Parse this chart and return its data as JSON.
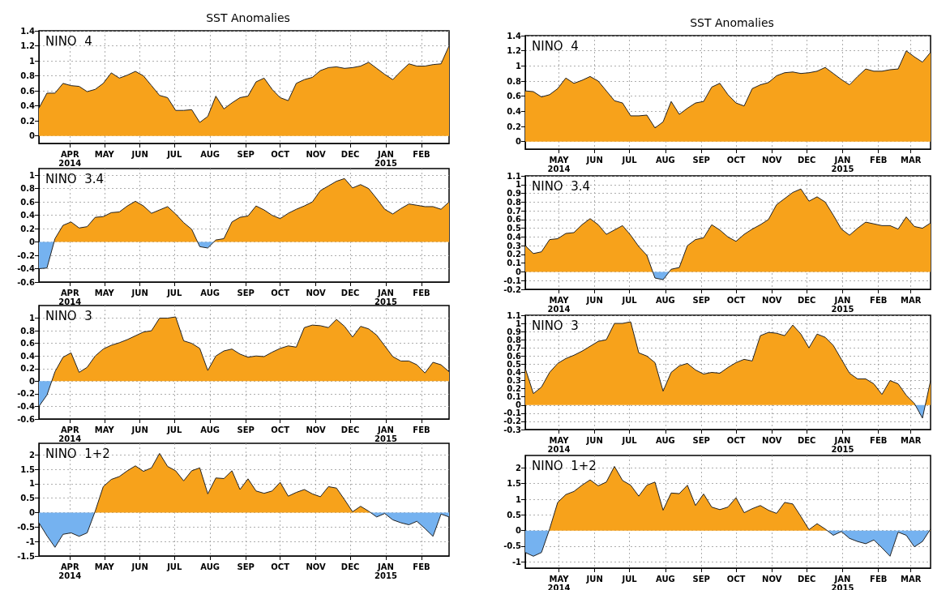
{
  "chart_data": [
    {
      "type": "area",
      "title": "SST Anomalies",
      "annotations": [
        "NINO  4"
      ],
      "grid": true,
      "marker": "none",
      "colors": [
        "#f7a21b",
        "#f7a21b",
        "#f7a21b",
        "#f7a21b",
        "#f7a21b",
        "#f7a21b",
        "#f7a21b",
        "#f7a21b",
        "#f7a21b",
        "#f7a21b",
        "#f7a21b",
        "#f7a21b",
        "#f7a21b",
        "#f7a21b",
        "#f7a21b",
        "#f7a21b",
        "#f7a21b",
        "#f7a21b",
        "#f7a21b",
        "#f7a21b",
        "#f7a21b",
        "#f7a21b",
        "#f7a21b",
        "#f7a21b",
        "#f7a21b",
        "#f7a21b",
        "#f7a21b",
        "#f7a21b",
        "#f7a21b",
        "#f7a21b",
        "#f7a21b",
        "#f7a21b",
        "#f7a21b",
        "#f7a21b",
        "#f7a21b",
        "#f7a21b",
        "#f7a21b",
        "#f7a21b",
        "#f7a21b",
        "#f7a21b",
        "#f7a21b",
        "#f7a21b",
        "#f7a21b",
        "#f7a21b",
        "#f7a21b",
        "#f7a21b",
        "#f7a21b",
        "#f7a21b",
        "#f7a21b",
        "#f7a21b",
        "#f7a21b",
        "#f7a21b"
      ],
      "xlim": [
        "2014-03-05",
        "2015-02-25"
      ],
      "ylim": [
        -0.1,
        1.4
      ],
      "yticks": [
        0,
        0.2,
        0.4,
        0.6,
        0.8,
        1,
        1.2,
        1.4
      ],
      "xticks": [
        {
          "value": "2014-04-01",
          "label": "APR\n2014"
        },
        {
          "value": "2014-05-01",
          "label": "MAY"
        },
        {
          "value": "2014-06-01",
          "label": "JUN"
        },
        {
          "value": "2014-07-01",
          "label": "JUL"
        },
        {
          "value": "2014-08-01",
          "label": "AUG"
        },
        {
          "value": "2014-09-01",
          "label": "SEP"
        },
        {
          "value": "2014-10-01",
          "label": "OCT"
        },
        {
          "value": "2014-11-01",
          "label": "NOV"
        },
        {
          "value": "2014-12-01",
          "label": "DEC"
        },
        {
          "value": "2015-01-01",
          "label": "JAN\n2015"
        },
        {
          "value": "2015-02-01",
          "label": "FEB"
        }
      ],
      "x": [
        "2014-03-05",
        "2014-03-12",
        "2014-03-19",
        "2014-03-26",
        "2014-04-02",
        "2014-04-09",
        "2014-04-16",
        "2014-04-23",
        "2014-04-30",
        "2014-05-07",
        "2014-05-14",
        "2014-05-21",
        "2014-05-28",
        "2014-06-04",
        "2014-06-11",
        "2014-06-18",
        "2014-06-25",
        "2014-07-02",
        "2014-07-09",
        "2014-07-16",
        "2014-07-23",
        "2014-07-30",
        "2014-08-06",
        "2014-08-13",
        "2014-08-20",
        "2014-08-27",
        "2014-09-03",
        "2014-09-10",
        "2014-09-17",
        "2014-09-24",
        "2014-10-01",
        "2014-10-08",
        "2014-10-15",
        "2014-10-22",
        "2014-10-29",
        "2014-11-05",
        "2014-11-12",
        "2014-11-19",
        "2014-11-26",
        "2014-12-03",
        "2014-12-10",
        "2014-12-17",
        "2014-12-24",
        "2014-12-31",
        "2015-01-07",
        "2015-01-14",
        "2015-01-21",
        "2015-01-28",
        "2015-02-04",
        "2015-02-11",
        "2015-02-18",
        "2015-02-25"
      ],
      "values": [
        0.37,
        0.57,
        0.57,
        0.7,
        0.67,
        0.66,
        0.59,
        0.62,
        0.7,
        0.84,
        0.77,
        0.81,
        0.86,
        0.8,
        0.67,
        0.54,
        0.51,
        0.34,
        0.34,
        0.35,
        0.18,
        0.26,
        0.53,
        0.36,
        0.44,
        0.51,
        0.53,
        0.72,
        0.77,
        0.62,
        0.51,
        0.47,
        0.7,
        0.75,
        0.78,
        0.87,
        0.91,
        0.92,
        0.9,
        0.91,
        0.93,
        0.98,
        0.9,
        0.82,
        0.75,
        0.86,
        0.96,
        0.93,
        0.93,
        0.95,
        0.96,
        1.2
      ]
    },
    {
      "type": "area",
      "annotations": [
        "NINO  3.4"
      ],
      "grid": true,
      "marker": "none",
      "colors": [
        "#75b2f0",
        "#75b2f0",
        "#f7a21b",
        "#f7a21b",
        "#f7a21b",
        "#f7a21b",
        "#f7a21b",
        "#f7a21b",
        "#f7a21b",
        "#f7a21b",
        "#f7a21b",
        "#f7a21b",
        "#f7a21b",
        "#f7a21b",
        "#f7a21b",
        "#f7a21b",
        "#f7a21b",
        "#f7a21b",
        "#f7a21b",
        "#f7a21b",
        "#75b2f0",
        "#75b2f0",
        "#f7a21b",
        "#f7a21b",
        "#f7a21b",
        "#f7a21b",
        "#f7a21b",
        "#f7a21b",
        "#f7a21b",
        "#f7a21b",
        "#f7a21b",
        "#f7a21b",
        "#f7a21b",
        "#f7a21b",
        "#f7a21b",
        "#f7a21b",
        "#f7a21b",
        "#f7a21b",
        "#f7a21b",
        "#f7a21b",
        "#f7a21b",
        "#f7a21b",
        "#f7a21b",
        "#f7a21b",
        "#f7a21b",
        "#f7a21b",
        "#f7a21b",
        "#f7a21b",
        "#f7a21b",
        "#f7a21b",
        "#f7a21b",
        "#f7a21b"
      ],
      "xlim": [
        "2014-03-05",
        "2015-02-25"
      ],
      "ylim": [
        -0.6,
        1.1
      ],
      "yticks": [
        -0.6,
        -0.4,
        -0.2,
        0,
        0.2,
        0.4,
        0.6,
        0.8,
        1
      ],
      "xticks": [
        {
          "value": "2014-04-01",
          "label": "APR\n2014"
        },
        {
          "value": "2014-05-01",
          "label": "MAY"
        },
        {
          "value": "2014-06-01",
          "label": "JUN"
        },
        {
          "value": "2014-07-01",
          "label": "JUL"
        },
        {
          "value": "2014-08-01",
          "label": "AUG"
        },
        {
          "value": "2014-09-01",
          "label": "SEP"
        },
        {
          "value": "2014-10-01",
          "label": "OCT"
        },
        {
          "value": "2014-11-01",
          "label": "NOV"
        },
        {
          "value": "2014-12-01",
          "label": "DEC"
        },
        {
          "value": "2015-01-01",
          "label": "JAN\n2015"
        },
        {
          "value": "2015-02-01",
          "label": "FEB"
        }
      ],
      "x": [
        "2014-03-05",
        "2014-03-12",
        "2014-03-19",
        "2014-03-26",
        "2014-04-02",
        "2014-04-09",
        "2014-04-16",
        "2014-04-23",
        "2014-04-30",
        "2014-05-07",
        "2014-05-14",
        "2014-05-21",
        "2014-05-28",
        "2014-06-04",
        "2014-06-11",
        "2014-06-18",
        "2014-06-25",
        "2014-07-02",
        "2014-07-09",
        "2014-07-16",
        "2014-07-23",
        "2014-07-30",
        "2014-08-06",
        "2014-08-13",
        "2014-08-20",
        "2014-08-27",
        "2014-09-03",
        "2014-09-10",
        "2014-09-17",
        "2014-09-24",
        "2014-10-01",
        "2014-10-08",
        "2014-10-15",
        "2014-10-22",
        "2014-10-29",
        "2014-11-05",
        "2014-11-12",
        "2014-11-19",
        "2014-11-26",
        "2014-12-03",
        "2014-12-10",
        "2014-12-17",
        "2014-12-24",
        "2014-12-31",
        "2015-01-07",
        "2015-01-14",
        "2015-01-21",
        "2015-01-28",
        "2015-02-04",
        "2015-02-11",
        "2015-02-18",
        "2015-02-25"
      ],
      "values": [
        -0.4,
        -0.39,
        0.05,
        0.25,
        0.3,
        0.21,
        0.23,
        0.37,
        0.38,
        0.44,
        0.45,
        0.54,
        0.61,
        0.54,
        0.43,
        0.48,
        0.53,
        0.42,
        0.29,
        0.19,
        -0.07,
        -0.09,
        0.03,
        0.05,
        0.3,
        0.37,
        0.39,
        0.54,
        0.48,
        0.4,
        0.35,
        0.43,
        0.49,
        0.54,
        0.6,
        0.77,
        0.84,
        0.91,
        0.95,
        0.81,
        0.86,
        0.8,
        0.65,
        0.49,
        0.42,
        0.5,
        0.57,
        0.55,
        0.53,
        0.53,
        0.49,
        0.6
      ]
    },
    {
      "type": "area",
      "annotations": [
        "NINO  3"
      ],
      "grid": true,
      "marker": "none",
      "colors": [
        "#75b2f0",
        "#75b2f0",
        "#f7a21b",
        "#f7a21b",
        "#f7a21b",
        "#f7a21b",
        "#f7a21b",
        "#f7a21b",
        "#f7a21b",
        "#f7a21b",
        "#f7a21b",
        "#f7a21b",
        "#f7a21b",
        "#f7a21b",
        "#f7a21b",
        "#f7a21b",
        "#f7a21b",
        "#f7a21b",
        "#f7a21b",
        "#f7a21b",
        "#f7a21b",
        "#f7a21b",
        "#f7a21b",
        "#f7a21b",
        "#f7a21b",
        "#f7a21b",
        "#f7a21b",
        "#f7a21b",
        "#f7a21b",
        "#f7a21b",
        "#f7a21b",
        "#f7a21b",
        "#f7a21b",
        "#f7a21b",
        "#f7a21b",
        "#f7a21b",
        "#f7a21b",
        "#f7a21b",
        "#f7a21b",
        "#f7a21b",
        "#f7a21b",
        "#f7a21b",
        "#f7a21b",
        "#f7a21b",
        "#f7a21b",
        "#f7a21b",
        "#f7a21b",
        "#f7a21b",
        "#f7a21b",
        "#f7a21b",
        "#f7a21b",
        "#f7a21b"
      ],
      "xlim": [
        "2014-03-05",
        "2015-02-25"
      ],
      "ylim": [
        -0.6,
        1.2
      ],
      "yticks": [
        -0.6,
        -0.4,
        -0.2,
        0,
        0.2,
        0.4,
        0.6,
        0.8,
        1
      ],
      "xticks": [
        {
          "value": "2014-04-01",
          "label": "APR\n2014"
        },
        {
          "value": "2014-05-01",
          "label": "MAY"
        },
        {
          "value": "2014-06-01",
          "label": "JUN"
        },
        {
          "value": "2014-07-01",
          "label": "JUL"
        },
        {
          "value": "2014-08-01",
          "label": "AUG"
        },
        {
          "value": "2014-09-01",
          "label": "SEP"
        },
        {
          "value": "2014-10-01",
          "label": "OCT"
        },
        {
          "value": "2014-11-01",
          "label": "NOV"
        },
        {
          "value": "2014-12-01",
          "label": "DEC"
        },
        {
          "value": "2015-01-01",
          "label": "JAN\n2015"
        },
        {
          "value": "2015-02-01",
          "label": "FEB"
        }
      ],
      "x": [
        "2014-03-05",
        "2014-03-12",
        "2014-03-19",
        "2014-03-26",
        "2014-04-02",
        "2014-04-09",
        "2014-04-16",
        "2014-04-23",
        "2014-04-30",
        "2014-05-07",
        "2014-05-14",
        "2014-05-21",
        "2014-05-28",
        "2014-06-04",
        "2014-06-11",
        "2014-06-18",
        "2014-06-25",
        "2014-07-02",
        "2014-07-09",
        "2014-07-16",
        "2014-07-23",
        "2014-07-30",
        "2014-08-06",
        "2014-08-13",
        "2014-08-20",
        "2014-08-27",
        "2014-09-03",
        "2014-09-10",
        "2014-09-17",
        "2014-09-24",
        "2014-10-01",
        "2014-10-08",
        "2014-10-15",
        "2014-10-22",
        "2014-10-29",
        "2014-11-05",
        "2014-11-12",
        "2014-11-19",
        "2014-11-26",
        "2014-12-03",
        "2014-12-10",
        "2014-12-17",
        "2014-12-24",
        "2014-12-31",
        "2015-01-07",
        "2015-01-14",
        "2015-01-21",
        "2015-01-28",
        "2015-02-04",
        "2015-02-11",
        "2015-02-18",
        "2015-02-25"
      ],
      "values": [
        -0.4,
        -0.22,
        0.15,
        0.38,
        0.45,
        0.14,
        0.22,
        0.4,
        0.51,
        0.57,
        0.61,
        0.66,
        0.72,
        0.78,
        0.8,
        1,
        1,
        1.02,
        0.64,
        0.6,
        0.52,
        0.17,
        0.4,
        0.48,
        0.51,
        0.43,
        0.38,
        0.4,
        0.39,
        0.46,
        0.52,
        0.56,
        0.54,
        0.85,
        0.89,
        0.88,
        0.85,
        0.98,
        0.87,
        0.7,
        0.87,
        0.83,
        0.73,
        0.56,
        0.39,
        0.32,
        0.32,
        0.26,
        0.13,
        0.3,
        0.26,
        0.15
      ]
    },
    {
      "type": "area",
      "annotations": [
        "NINO  1+2"
      ],
      "grid": true,
      "marker": "none",
      "colors": [
        "#75b2f0",
        "#75b2f0",
        "#75b2f0",
        "#75b2f0",
        "#75b2f0",
        "#75b2f0",
        "#75b2f0",
        "#f7a21b",
        "#f7a21b",
        "#f7a21b",
        "#f7a21b",
        "#f7a21b",
        "#f7a21b",
        "#f7a21b",
        "#f7a21b",
        "#f7a21b",
        "#f7a21b",
        "#f7a21b",
        "#f7a21b",
        "#f7a21b",
        "#f7a21b",
        "#f7a21b",
        "#f7a21b",
        "#f7a21b",
        "#f7a21b",
        "#f7a21b",
        "#f7a21b",
        "#f7a21b",
        "#f7a21b",
        "#f7a21b",
        "#f7a21b",
        "#f7a21b",
        "#f7a21b",
        "#f7a21b",
        "#f7a21b",
        "#f7a21b",
        "#f7a21b",
        "#f7a21b",
        "#f7a21b",
        "#f7a21b",
        "#f7a21b",
        "#f7a21b",
        "#75b2f0",
        "#75b2f0",
        "#75b2f0",
        "#75b2f0",
        "#75b2f0",
        "#75b2f0",
        "#75b2f0",
        "#75b2f0",
        "#75b2f0",
        "#75b2f0"
      ],
      "xlim": [
        "2014-03-05",
        "2015-02-25"
      ],
      "ylim": [
        -1.5,
        2.4
      ],
      "yticks": [
        -1.5,
        -1,
        -0.5,
        0,
        0.5,
        1,
        1.5,
        2
      ],
      "xticks": [
        {
          "value": "2014-04-01",
          "label": "APR\n2014"
        },
        {
          "value": "2014-05-01",
          "label": "MAY"
        },
        {
          "value": "2014-06-01",
          "label": "JUN"
        },
        {
          "value": "2014-07-01",
          "label": "JUL"
        },
        {
          "value": "2014-08-01",
          "label": "AUG"
        },
        {
          "value": "2014-09-01",
          "label": "SEP"
        },
        {
          "value": "2014-10-01",
          "label": "OCT"
        },
        {
          "value": "2014-11-01",
          "label": "NOV"
        },
        {
          "value": "2014-12-01",
          "label": "DEC"
        },
        {
          "value": "2015-01-01",
          "label": "JAN\n2015"
        },
        {
          "value": "2015-02-01",
          "label": "FEB"
        }
      ],
      "x": [
        "2014-03-05",
        "2014-03-12",
        "2014-03-19",
        "2014-03-26",
        "2014-04-02",
        "2014-04-09",
        "2014-04-16",
        "2014-04-23",
        "2014-04-30",
        "2014-05-07",
        "2014-05-14",
        "2014-05-21",
        "2014-05-28",
        "2014-06-04",
        "2014-06-11",
        "2014-06-18",
        "2014-06-25",
        "2014-07-02",
        "2014-07-09",
        "2014-07-16",
        "2014-07-23",
        "2014-07-30",
        "2014-08-06",
        "2014-08-13",
        "2014-08-20",
        "2014-08-27",
        "2014-09-03",
        "2014-09-10",
        "2014-09-17",
        "2014-09-24",
        "2014-10-01",
        "2014-10-08",
        "2014-10-15",
        "2014-10-22",
        "2014-10-29",
        "2014-11-05",
        "2014-11-12",
        "2014-11-19",
        "2014-11-26",
        "2014-12-03",
        "2014-12-10",
        "2014-12-17",
        "2014-12-24",
        "2014-12-31",
        "2015-01-07",
        "2015-01-14",
        "2015-01-21",
        "2015-01-28",
        "2015-02-04",
        "2015-02-11",
        "2015-02-18",
        "2015-02-25"
      ],
      "values": [
        -0.35,
        -0.8,
        -1.2,
        -0.75,
        -0.7,
        -0.82,
        -0.7,
        0.05,
        0.9,
        1.15,
        1.25,
        1.45,
        1.62,
        1.43,
        1.55,
        2.05,
        1.6,
        1.45,
        1.1,
        1.45,
        1.55,
        0.65,
        1.2,
        1.18,
        1.45,
        0.8,
        1.17,
        0.75,
        0.67,
        0.75,
        1.05,
        0.57,
        0.7,
        0.8,
        0.65,
        0.55,
        0.9,
        0.85,
        0.45,
        0.03,
        0.22,
        0.05,
        -0.15,
        -0.03,
        -0.25,
        -0.35,
        -0.42,
        -0.3,
        -0.55,
        -0.82,
        -0.05,
        -0.15
      ]
    },
    {
      "type": "area",
      "title": "SST Anomalies",
      "annotations": [
        "NINO  4"
      ],
      "grid": true,
      "marker": "none",
      "colors": [
        "#f7a21b",
        "#f7a21b",
        "#f7a21b",
        "#f7a21b",
        "#f7a21b",
        "#f7a21b",
        "#f7a21b",
        "#f7a21b",
        "#f7a21b",
        "#f7a21b",
        "#f7a21b",
        "#f7a21b",
        "#f7a21b",
        "#f7a21b",
        "#f7a21b",
        "#f7a21b",
        "#f7a21b",
        "#f7a21b",
        "#f7a21b",
        "#f7a21b",
        "#f7a21b",
        "#f7a21b",
        "#f7a21b",
        "#f7a21b",
        "#f7a21b",
        "#f7a21b",
        "#f7a21b",
        "#f7a21b",
        "#f7a21b",
        "#f7a21b",
        "#f7a21b",
        "#f7a21b",
        "#f7a21b",
        "#f7a21b",
        "#f7a21b",
        "#f7a21b",
        "#f7a21b",
        "#f7a21b",
        "#f7a21b",
        "#f7a21b",
        "#f7a21b",
        "#f7a21b",
        "#f7a21b",
        "#f7a21b",
        "#f7a21b",
        "#f7a21b",
        "#f7a21b",
        "#f7a21b",
        "#f7a21b",
        "#f7a21b",
        "#f7a21b"
      ],
      "xlim": [
        "2014-04-02",
        "2015-03-18"
      ],
      "ylim": [
        -0.1,
        1.4
      ],
      "yticks": [
        0,
        0.2,
        0.4,
        0.6,
        0.8,
        1,
        1.2,
        1.4
      ],
      "xticks": [
        {
          "value": "2014-05-01",
          "label": "MAY\n2014"
        },
        {
          "value": "2014-06-01",
          "label": "JUN"
        },
        {
          "value": "2014-07-01",
          "label": "JUL"
        },
        {
          "value": "2014-08-01",
          "label": "AUG"
        },
        {
          "value": "2014-09-01",
          "label": "SEP"
        },
        {
          "value": "2014-10-01",
          "label": "OCT"
        },
        {
          "value": "2014-11-01",
          "label": "NOV"
        },
        {
          "value": "2014-12-01",
          "label": "DEC"
        },
        {
          "value": "2015-01-01",
          "label": "JAN\n2015"
        },
        {
          "value": "2015-02-01",
          "label": "FEB"
        },
        {
          "value": "2015-03-01",
          "label": "MAR"
        }
      ],
      "x": [
        "2014-04-02",
        "2014-04-09",
        "2014-04-16",
        "2014-04-23",
        "2014-04-30",
        "2014-05-07",
        "2014-05-14",
        "2014-05-21",
        "2014-05-28",
        "2014-06-04",
        "2014-06-11",
        "2014-06-18",
        "2014-06-25",
        "2014-07-02",
        "2014-07-09",
        "2014-07-16",
        "2014-07-23",
        "2014-07-30",
        "2014-08-06",
        "2014-08-13",
        "2014-08-20",
        "2014-08-27",
        "2014-09-03",
        "2014-09-10",
        "2014-09-17",
        "2014-09-24",
        "2014-10-01",
        "2014-10-08",
        "2014-10-15",
        "2014-10-22",
        "2014-10-29",
        "2014-11-05",
        "2014-11-12",
        "2014-11-19",
        "2014-11-26",
        "2014-12-03",
        "2014-12-10",
        "2014-12-17",
        "2014-12-24",
        "2014-12-31",
        "2015-01-07",
        "2015-01-14",
        "2015-01-21",
        "2015-01-28",
        "2015-02-04",
        "2015-02-11",
        "2015-02-18",
        "2015-02-25",
        "2015-03-04",
        "2015-03-11",
        "2015-03-18"
      ],
      "values": [
        0.67,
        0.66,
        0.59,
        0.62,
        0.7,
        0.84,
        0.77,
        0.81,
        0.86,
        0.8,
        0.67,
        0.54,
        0.51,
        0.34,
        0.34,
        0.35,
        0.18,
        0.26,
        0.53,
        0.36,
        0.44,
        0.51,
        0.53,
        0.72,
        0.77,
        0.62,
        0.51,
        0.47,
        0.7,
        0.75,
        0.78,
        0.87,
        0.91,
        0.92,
        0.9,
        0.91,
        0.93,
        0.98,
        0.9,
        0.82,
        0.75,
        0.86,
        0.96,
        0.93,
        0.93,
        0.95,
        0.96,
        1.2,
        1.12,
        1.05,
        1.18
      ]
    },
    {
      "type": "area",
      "annotations": [
        "NINO  3.4"
      ],
      "grid": true,
      "marker": "none",
      "colors": [
        "#f7a21b",
        "#f7a21b",
        "#f7a21b",
        "#f7a21b",
        "#f7a21b",
        "#f7a21b",
        "#f7a21b",
        "#f7a21b",
        "#f7a21b",
        "#f7a21b",
        "#f7a21b",
        "#f7a21b",
        "#f7a21b",
        "#f7a21b",
        "#f7a21b",
        "#f7a21b",
        "#75b2f0",
        "#75b2f0",
        "#f7a21b",
        "#f7a21b",
        "#f7a21b",
        "#f7a21b",
        "#f7a21b",
        "#f7a21b",
        "#f7a21b",
        "#f7a21b",
        "#f7a21b",
        "#f7a21b",
        "#f7a21b",
        "#f7a21b",
        "#f7a21b",
        "#f7a21b",
        "#f7a21b",
        "#f7a21b",
        "#f7a21b",
        "#f7a21b",
        "#f7a21b",
        "#f7a21b",
        "#f7a21b",
        "#f7a21b",
        "#f7a21b",
        "#f7a21b",
        "#f7a21b",
        "#f7a21b",
        "#f7a21b",
        "#f7a21b",
        "#f7a21b",
        "#f7a21b",
        "#f7a21b",
        "#f7a21b",
        "#f7a21b"
      ],
      "xlim": [
        "2014-04-02",
        "2015-03-18"
      ],
      "ylim": [
        -0.2,
        1.1
      ],
      "yticks": [
        -0.2,
        -0.1,
        0,
        0.1,
        0.2,
        0.3,
        0.4,
        0.5,
        0.6,
        0.7,
        0.8,
        0.9,
        1,
        1.1
      ],
      "xticks": [
        {
          "value": "2014-05-01",
          "label": "MAY\n2014"
        },
        {
          "value": "2014-06-01",
          "label": "JUN"
        },
        {
          "value": "2014-07-01",
          "label": "JUL"
        },
        {
          "value": "2014-08-01",
          "label": "AUG"
        },
        {
          "value": "2014-09-01",
          "label": "SEP"
        },
        {
          "value": "2014-10-01",
          "label": "OCT"
        },
        {
          "value": "2014-11-01",
          "label": "NOV"
        },
        {
          "value": "2014-12-01",
          "label": "DEC"
        },
        {
          "value": "2015-01-01",
          "label": "JAN\n2015"
        },
        {
          "value": "2015-02-01",
          "label": "FEB"
        },
        {
          "value": "2015-03-01",
          "label": "MAR"
        }
      ],
      "x": [
        "2014-04-02",
        "2014-04-09",
        "2014-04-16",
        "2014-04-23",
        "2014-04-30",
        "2014-05-07",
        "2014-05-14",
        "2014-05-21",
        "2014-05-28",
        "2014-06-04",
        "2014-06-11",
        "2014-06-18",
        "2014-06-25",
        "2014-07-02",
        "2014-07-09",
        "2014-07-16",
        "2014-07-23",
        "2014-07-30",
        "2014-08-06",
        "2014-08-13",
        "2014-08-20",
        "2014-08-27",
        "2014-09-03",
        "2014-09-10",
        "2014-09-17",
        "2014-09-24",
        "2014-10-01",
        "2014-10-08",
        "2014-10-15",
        "2014-10-22",
        "2014-10-29",
        "2014-11-05",
        "2014-11-12",
        "2014-11-19",
        "2014-11-26",
        "2014-12-03",
        "2014-12-10",
        "2014-12-17",
        "2014-12-24",
        "2014-12-31",
        "2015-01-07",
        "2015-01-14",
        "2015-01-21",
        "2015-01-28",
        "2015-02-04",
        "2015-02-11",
        "2015-02-18",
        "2015-02-25",
        "2015-03-04",
        "2015-03-11",
        "2015-03-18"
      ],
      "values": [
        0.3,
        0.21,
        0.23,
        0.37,
        0.38,
        0.44,
        0.45,
        0.54,
        0.61,
        0.54,
        0.43,
        0.48,
        0.53,
        0.42,
        0.29,
        0.19,
        -0.07,
        -0.09,
        0.03,
        0.05,
        0.3,
        0.37,
        0.39,
        0.54,
        0.48,
        0.4,
        0.35,
        0.43,
        0.49,
        0.54,
        0.6,
        0.77,
        0.84,
        0.91,
        0.95,
        0.81,
        0.86,
        0.8,
        0.65,
        0.49,
        0.42,
        0.5,
        0.57,
        0.55,
        0.53,
        0.53,
        0.49,
        0.63,
        0.52,
        0.5,
        0.56
      ]
    },
    {
      "type": "area",
      "annotations": [
        "NINO  3"
      ],
      "grid": true,
      "marker": "none",
      "colors": [
        "#f7a21b",
        "#f7a21b",
        "#f7a21b",
        "#f7a21b",
        "#f7a21b",
        "#f7a21b",
        "#f7a21b",
        "#f7a21b",
        "#f7a21b",
        "#f7a21b",
        "#f7a21b",
        "#f7a21b",
        "#f7a21b",
        "#f7a21b",
        "#f7a21b",
        "#f7a21b",
        "#f7a21b",
        "#f7a21b",
        "#f7a21b",
        "#f7a21b",
        "#f7a21b",
        "#f7a21b",
        "#f7a21b",
        "#f7a21b",
        "#f7a21b",
        "#f7a21b",
        "#f7a21b",
        "#f7a21b",
        "#f7a21b",
        "#f7a21b",
        "#f7a21b",
        "#f7a21b",
        "#f7a21b",
        "#f7a21b",
        "#f7a21b",
        "#f7a21b",
        "#f7a21b",
        "#f7a21b",
        "#f7a21b",
        "#f7a21b",
        "#f7a21b",
        "#f7a21b",
        "#f7a21b",
        "#f7a21b",
        "#f7a21b",
        "#f7a21b",
        "#f7a21b",
        "#f7a21b",
        "#f7a21b",
        "#75b2f0",
        "#f7a21b"
      ],
      "xlim": [
        "2014-04-02",
        "2015-03-18"
      ],
      "ylim": [
        -0.3,
        1.1
      ],
      "yticks": [
        -0.3,
        -0.2,
        -0.1,
        0,
        0.1,
        0.2,
        0.3,
        0.4,
        0.5,
        0.6,
        0.7,
        0.8,
        0.9,
        1,
        1.1
      ],
      "xticks": [
        {
          "value": "2014-05-01",
          "label": "MAY\n2014"
        },
        {
          "value": "2014-06-01",
          "label": "JUN"
        },
        {
          "value": "2014-07-01",
          "label": "JUL"
        },
        {
          "value": "2014-08-01",
          "label": "AUG"
        },
        {
          "value": "2014-09-01",
          "label": "SEP"
        },
        {
          "value": "2014-10-01",
          "label": "OCT"
        },
        {
          "value": "2014-11-01",
          "label": "NOV"
        },
        {
          "value": "2014-12-01",
          "label": "DEC"
        },
        {
          "value": "2015-01-01",
          "label": "JAN\n2015"
        },
        {
          "value": "2015-02-01",
          "label": "FEB"
        },
        {
          "value": "2015-03-01",
          "label": "MAR"
        }
      ],
      "x": [
        "2014-04-02",
        "2014-04-09",
        "2014-04-16",
        "2014-04-23",
        "2014-04-30",
        "2014-05-07",
        "2014-05-14",
        "2014-05-21",
        "2014-05-28",
        "2014-06-04",
        "2014-06-11",
        "2014-06-18",
        "2014-06-25",
        "2014-07-02",
        "2014-07-09",
        "2014-07-16",
        "2014-07-23",
        "2014-07-30",
        "2014-08-06",
        "2014-08-13",
        "2014-08-20",
        "2014-08-27",
        "2014-09-03",
        "2014-09-10",
        "2014-09-17",
        "2014-09-24",
        "2014-10-01",
        "2014-10-08",
        "2014-10-15",
        "2014-10-22",
        "2014-10-29",
        "2014-11-05",
        "2014-11-12",
        "2014-11-19",
        "2014-11-26",
        "2014-12-03",
        "2014-12-10",
        "2014-12-17",
        "2014-12-24",
        "2014-12-31",
        "2015-01-07",
        "2015-01-14",
        "2015-01-21",
        "2015-01-28",
        "2015-02-04",
        "2015-02-11",
        "2015-02-18",
        "2015-02-25",
        "2015-03-04",
        "2015-03-11",
        "2015-03-18"
      ],
      "values": [
        0.45,
        0.14,
        0.22,
        0.4,
        0.51,
        0.57,
        0.61,
        0.66,
        0.72,
        0.78,
        0.8,
        1,
        1,
        1.02,
        0.64,
        0.6,
        0.52,
        0.17,
        0.4,
        0.48,
        0.51,
        0.43,
        0.38,
        0.4,
        0.39,
        0.46,
        0.52,
        0.56,
        0.54,
        0.85,
        0.89,
        0.88,
        0.85,
        0.98,
        0.87,
        0.7,
        0.87,
        0.83,
        0.73,
        0.56,
        0.39,
        0.32,
        0.32,
        0.26,
        0.13,
        0.3,
        0.26,
        0.12,
        0.02,
        -0.16,
        0.3
      ]
    },
    {
      "type": "area",
      "annotations": [
        "NINO  1+2"
      ],
      "grid": true,
      "marker": "none",
      "colors": [
        "#75b2f0",
        "#75b2f0",
        "#75b2f0",
        "#f7a21b",
        "#f7a21b",
        "#f7a21b",
        "#f7a21b",
        "#f7a21b",
        "#f7a21b",
        "#f7a21b",
        "#f7a21b",
        "#f7a21b",
        "#f7a21b",
        "#f7a21b",
        "#f7a21b",
        "#f7a21b",
        "#f7a21b",
        "#f7a21b",
        "#f7a21b",
        "#f7a21b",
        "#f7a21b",
        "#f7a21b",
        "#f7a21b",
        "#f7a21b",
        "#f7a21b",
        "#f7a21b",
        "#f7a21b",
        "#f7a21b",
        "#f7a21b",
        "#f7a21b",
        "#f7a21b",
        "#f7a21b",
        "#f7a21b",
        "#f7a21b",
        "#f7a21b",
        "#f7a21b",
        "#f7a21b",
        "#f7a21b",
        "#75b2f0",
        "#75b2f0",
        "#75b2f0",
        "#75b2f0",
        "#75b2f0",
        "#75b2f0",
        "#75b2f0",
        "#75b2f0",
        "#75b2f0",
        "#75b2f0",
        "#75b2f0",
        "#75b2f0",
        "#f7a21b"
      ],
      "xlim": [
        "2014-04-02",
        "2015-03-18"
      ],
      "ylim": [
        -1.2,
        2.4
      ],
      "yticks": [
        -1,
        -0.5,
        0,
        0.5,
        1,
        1.5,
        2
      ],
      "xticks": [
        {
          "value": "2014-05-01",
          "label": "MAY\n2014"
        },
        {
          "value": "2014-06-01",
          "label": "JUN"
        },
        {
          "value": "2014-07-01",
          "label": "JUL"
        },
        {
          "value": "2014-08-01",
          "label": "AUG"
        },
        {
          "value": "2014-09-01",
          "label": "SEP"
        },
        {
          "value": "2014-10-01",
          "label": "OCT"
        },
        {
          "value": "2014-11-01",
          "label": "NOV"
        },
        {
          "value": "2014-12-01",
          "label": "DEC"
        },
        {
          "value": "2015-01-01",
          "label": "JAN\n2015"
        },
        {
          "value": "2015-02-01",
          "label": "FEB"
        },
        {
          "value": "2015-03-01",
          "label": "MAR"
        }
      ],
      "x": [
        "2014-04-02",
        "2014-04-09",
        "2014-04-16",
        "2014-04-23",
        "2014-04-30",
        "2014-05-07",
        "2014-05-14",
        "2014-05-21",
        "2014-05-28",
        "2014-06-04",
        "2014-06-11",
        "2014-06-18",
        "2014-06-25",
        "2014-07-02",
        "2014-07-09",
        "2014-07-16",
        "2014-07-23",
        "2014-07-30",
        "2014-08-06",
        "2014-08-13",
        "2014-08-20",
        "2014-08-27",
        "2014-09-03",
        "2014-09-10",
        "2014-09-17",
        "2014-09-24",
        "2014-10-01",
        "2014-10-08",
        "2014-10-15",
        "2014-10-22",
        "2014-10-29",
        "2014-11-05",
        "2014-11-12",
        "2014-11-19",
        "2014-11-26",
        "2014-12-03",
        "2014-12-10",
        "2014-12-17",
        "2014-12-24",
        "2014-12-31",
        "2015-01-07",
        "2015-01-14",
        "2015-01-21",
        "2015-01-28",
        "2015-02-04",
        "2015-02-11",
        "2015-02-18",
        "2015-02-25",
        "2015-03-04",
        "2015-03-11",
        "2015-03-18"
      ],
      "values": [
        -0.7,
        -0.82,
        -0.7,
        0.05,
        0.9,
        1.15,
        1.25,
        1.45,
        1.62,
        1.43,
        1.55,
        2.05,
        1.6,
        1.45,
        1.1,
        1.45,
        1.55,
        0.65,
        1.2,
        1.18,
        1.45,
        0.8,
        1.17,
        0.75,
        0.67,
        0.75,
        1.05,
        0.57,
        0.7,
        0.8,
        0.65,
        0.55,
        0.9,
        0.85,
        0.45,
        0.03,
        0.22,
        0.05,
        -0.15,
        -0.03,
        -0.25,
        -0.35,
        -0.42,
        -0.3,
        -0.55,
        -0.82,
        -0.05,
        -0.15,
        -0.52,
        -0.35,
        0.05
      ]
    }
  ]
}
